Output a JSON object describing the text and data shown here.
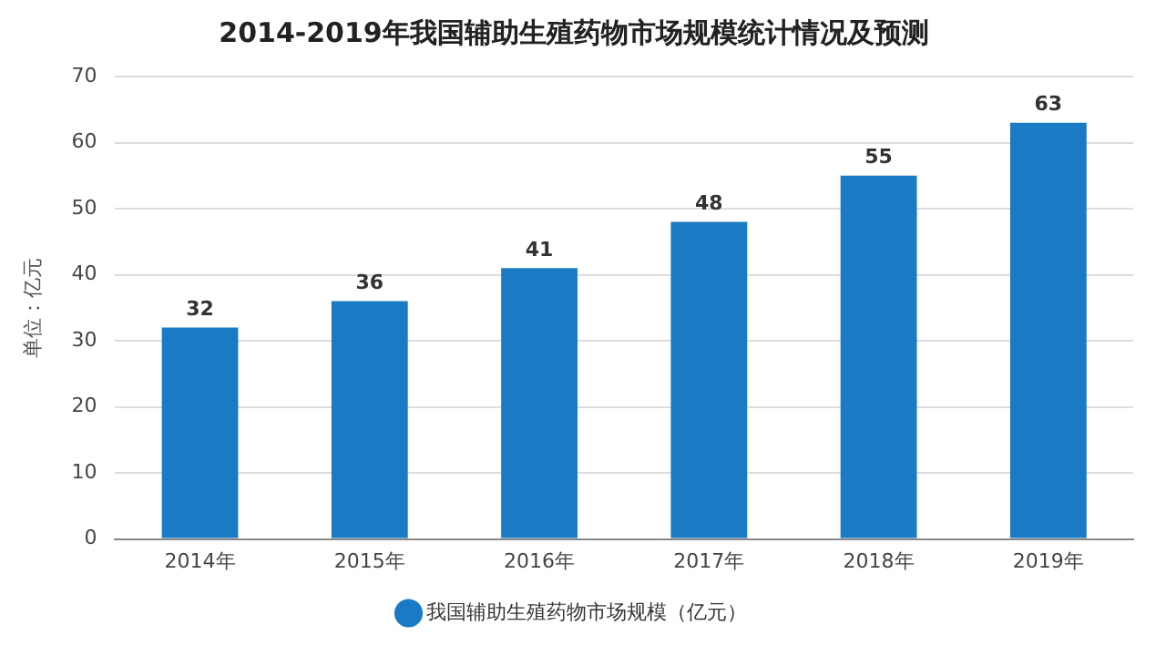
{
  "chart_data": {
    "type": "bar",
    "title": "2014-2019年我国辅助生殖药物市场规模统计情况及预测",
    "ylabel": "单位：亿元",
    "categories": [
      "2014年",
      "2015年",
      "2016年",
      "2017年",
      "2018年",
      "2019年"
    ],
    "series": [
      {
        "name": "我国辅助生殖药物市场规模（亿元）",
        "color": "#1a7ac4",
        "values": [
          32,
          36,
          41,
          48,
          55,
          63
        ]
      }
    ],
    "ylim": [
      0,
      70
    ],
    "yticks": [
      0,
      10,
      20,
      30,
      40,
      50,
      60,
      70
    ],
    "grid": "y",
    "legend": "bottom",
    "data_labels": true
  }
}
